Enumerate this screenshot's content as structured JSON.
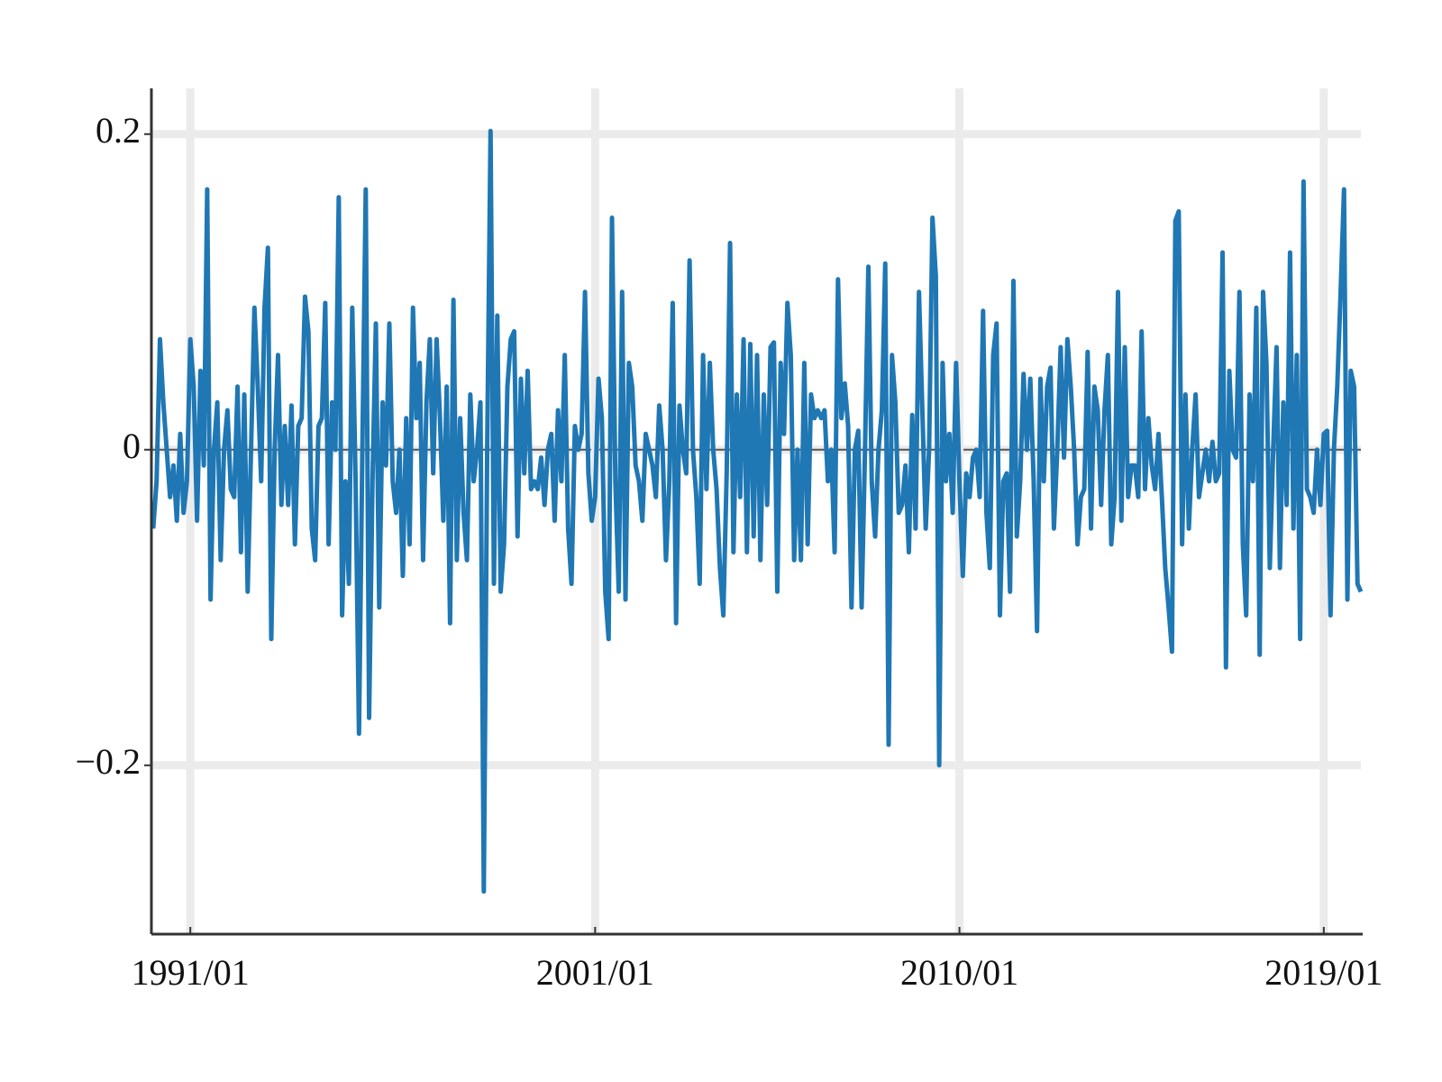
{
  "chart_data": {
    "type": "line",
    "x": [
      "1990/02",
      "1990/03",
      "1990/04",
      "1990/05",
      "1990/06",
      "1990/07",
      "1990/08",
      "1990/09",
      "1990/10",
      "1990/11",
      "1990/12",
      "1991/01",
      "1991/02",
      "1991/03",
      "1991/04",
      "1991/05",
      "1991/06",
      "1991/07",
      "1991/08",
      "1991/09",
      "1991/10",
      "1991/11",
      "1991/12",
      "1992/01",
      "1992/02",
      "1992/03",
      "1992/04",
      "1992/05",
      "1992/06",
      "1992/07",
      "1992/08",
      "1992/09",
      "1992/10",
      "1992/11",
      "1992/12",
      "1993/01",
      "1993/02",
      "1993/03",
      "1993/04",
      "1993/05",
      "1993/06",
      "1993/07",
      "1993/08",
      "1993/09",
      "1993/10",
      "1993/11",
      "1993/12",
      "1994/01",
      "1994/02",
      "1994/03",
      "1994/04",
      "1994/05",
      "1994/06",
      "1994/07",
      "1994/08",
      "1994/09",
      "1994/10",
      "1994/11",
      "1994/12",
      "1995/01",
      "1995/02",
      "1995/03",
      "1995/04",
      "1995/05",
      "1995/06",
      "1995/07",
      "1995/08",
      "1995/09",
      "1995/10",
      "1995/11",
      "1995/12",
      "1996/01",
      "1996/02",
      "1996/03",
      "1996/04",
      "1996/05",
      "1996/06",
      "1996/07",
      "1996/08",
      "1996/09",
      "1996/10",
      "1996/11",
      "1996/12",
      "1997/01",
      "1997/02",
      "1997/03",
      "1997/04",
      "1997/05",
      "1997/06",
      "1997/07",
      "1997/08",
      "1997/09",
      "1997/10",
      "1997/11",
      "1997/12",
      "1998/01",
      "1998/02",
      "1998/03",
      "1998/04",
      "1998/05",
      "1998/06",
      "1998/07",
      "1998/08",
      "1998/09",
      "1998/10",
      "1998/11",
      "1998/12",
      "1999/01",
      "1999/02",
      "1999/03",
      "1999/04",
      "1999/05",
      "1999/06",
      "1999/07",
      "1999/08",
      "1999/09",
      "1999/10",
      "1999/11",
      "1999/12",
      "2000/01",
      "2000/02",
      "2000/03",
      "2000/04",
      "2000/05",
      "2000/06",
      "2000/07",
      "2000/08",
      "2000/09",
      "2000/10",
      "2000/11",
      "2000/12",
      "2001/01",
      "2001/02",
      "2001/03",
      "2001/04",
      "2001/05",
      "2001/06",
      "2001/07",
      "2001/08",
      "2001/09",
      "2001/10",
      "2001/11",
      "2001/12",
      "2002/01",
      "2002/02",
      "2002/03",
      "2002/04",
      "2002/05",
      "2002/06",
      "2002/07",
      "2002/08",
      "2002/09",
      "2002/10",
      "2002/11",
      "2002/12",
      "2003/01",
      "2003/02",
      "2003/03",
      "2003/04",
      "2003/05",
      "2003/06",
      "2003/07",
      "2003/08",
      "2003/09",
      "2003/10",
      "2003/11",
      "2003/12",
      "2004/01",
      "2004/02",
      "2004/03",
      "2004/04",
      "2004/05",
      "2004/06",
      "2004/07",
      "2004/08",
      "2004/09",
      "2004/10",
      "2004/11",
      "2004/12",
      "2005/01",
      "2005/02",
      "2005/03",
      "2005/04",
      "2005/05",
      "2005/06",
      "2005/07",
      "2005/08",
      "2005/09",
      "2005/10",
      "2005/11",
      "2005/12",
      "2006/01",
      "2006/02",
      "2006/03",
      "2006/04",
      "2006/05",
      "2006/06",
      "2006/07",
      "2006/08",
      "2006/09",
      "2006/10",
      "2006/11",
      "2006/12",
      "2007/01",
      "2007/02",
      "2007/03",
      "2007/04",
      "2007/05",
      "2007/06",
      "2007/07",
      "2007/08",
      "2007/09",
      "2007/10",
      "2007/11",
      "2007/12",
      "2008/01",
      "2008/02",
      "2008/03",
      "2008/04",
      "2008/05",
      "2008/06",
      "2008/07",
      "2008/08",
      "2008/09",
      "2008/10",
      "2008/11",
      "2008/12",
      "2009/01",
      "2009/02",
      "2009/03",
      "2009/04",
      "2009/05",
      "2009/06",
      "2009/07",
      "2009/08",
      "2009/09",
      "2009/10",
      "2009/11",
      "2009/12",
      "2010/01",
      "2010/02",
      "2010/03",
      "2010/04",
      "2010/05",
      "2010/06",
      "2010/07",
      "2010/08",
      "2010/09",
      "2010/10",
      "2010/11",
      "2010/12",
      "2011/01",
      "2011/02",
      "2011/03",
      "2011/04",
      "2011/05",
      "2011/06",
      "2011/07",
      "2011/08",
      "2011/09",
      "2011/10",
      "2011/11",
      "2011/12",
      "2012/01",
      "2012/02",
      "2012/03",
      "2012/04",
      "2012/05",
      "2012/06",
      "2012/07",
      "2012/08",
      "2012/09",
      "2012/10",
      "2012/11",
      "2012/12",
      "2013/01",
      "2013/02",
      "2013/03",
      "2013/04",
      "2013/05",
      "2013/06",
      "2013/07",
      "2013/08",
      "2013/09",
      "2013/10",
      "2013/11",
      "2013/12",
      "2014/01",
      "2014/02",
      "2014/03",
      "2014/04",
      "2014/05",
      "2014/06",
      "2014/07",
      "2014/08",
      "2014/09",
      "2014/10",
      "2014/11",
      "2014/12",
      "2015/01",
      "2015/02",
      "2015/03",
      "2015/04",
      "2015/05",
      "2015/06",
      "2015/07",
      "2015/08",
      "2015/09",
      "2015/10",
      "2015/11",
      "2015/12",
      "2016/01",
      "2016/02",
      "2016/03",
      "2016/04",
      "2016/05",
      "2016/06",
      "2016/07",
      "2016/08",
      "2016/09",
      "2016/10",
      "2016/11",
      "2016/12",
      "2017/01",
      "2017/02",
      "2017/03",
      "2017/04",
      "2017/05",
      "2017/06",
      "2017/07",
      "2017/08",
      "2017/09",
      "2017/10",
      "2017/11",
      "2017/12",
      "2018/01",
      "2018/02",
      "2018/03",
      "2018/04",
      "2018/05",
      "2018/06",
      "2018/07",
      "2018/08",
      "2018/09",
      "2018/10",
      "2018/11",
      "2018/12",
      "2019/01",
      "2019/02",
      "2019/03",
      "2019/04",
      "2019/05",
      "2019/06",
      "2019/07",
      "2019/08",
      "2019/09",
      "2019/10",
      "2019/11",
      "2019/12"
    ],
    "series": [
      {
        "color": "#1f77b4",
        "values": [
          -0.05,
          -0.02,
          0.07,
          0.03,
          0.0,
          -0.03,
          -0.01,
          -0.045,
          0.01,
          -0.04,
          -0.02,
          0.07,
          0.04,
          -0.045,
          0.05,
          -0.01,
          0.165,
          -0.095,
          0.0,
          0.03,
          -0.07,
          0.0,
          0.025,
          -0.025,
          -0.03,
          0.04,
          -0.065,
          0.035,
          -0.09,
          0.0,
          0.09,
          0.04,
          -0.02,
          0.09,
          0.128,
          -0.12,
          0.0,
          0.06,
          -0.035,
          0.015,
          -0.035,
          0.028,
          -0.06,
          0.015,
          0.02,
          0.097,
          0.075,
          -0.05,
          -0.07,
          0.015,
          0.02,
          0.093,
          -0.06,
          0.03,
          0.0,
          0.16,
          -0.105,
          -0.02,
          -0.085,
          0.09,
          -0.02,
          -0.18,
          0.0,
          0.165,
          -0.17,
          -0.02,
          0.08,
          -0.1,
          0.03,
          -0.01,
          0.08,
          -0.02,
          -0.04,
          0.0,
          -0.08,
          0.02,
          -0.06,
          0.09,
          0.02,
          0.055,
          -0.07,
          0.03,
          0.07,
          -0.015,
          0.07,
          0.02,
          -0.045,
          0.04,
          -0.11,
          0.095,
          -0.07,
          0.02,
          -0.04,
          -0.07,
          0.035,
          -0.02,
          0.0,
          0.03,
          -0.28,
          0.0,
          0.202,
          -0.085,
          0.085,
          -0.09,
          -0.06,
          0.04,
          0.07,
          0.075,
          -0.055,
          0.045,
          -0.015,
          0.05,
          -0.025,
          -0.02,
          -0.025,
          -0.005,
          -0.035,
          0.0,
          0.01,
          -0.045,
          0.025,
          -0.02,
          0.06,
          -0.05,
          -0.085,
          0.015,
          0.0,
          0.01,
          0.1,
          -0.015,
          -0.045,
          -0.03,
          0.045,
          0.02,
          -0.09,
          -0.12,
          0.147,
          -0.02,
          -0.09,
          0.1,
          -0.095,
          0.055,
          0.04,
          -0.01,
          -0.02,
          -0.045,
          0.01,
          0.0,
          -0.01,
          -0.03,
          0.028,
          0.0,
          -0.07,
          -0.02,
          0.093,
          -0.11,
          0.028,
          0.0,
          -0.015,
          0.12,
          0.0,
          -0.03,
          -0.085,
          0.06,
          -0.025,
          0.055,
          0.0,
          -0.025,
          -0.075,
          -0.105,
          -0.015,
          0.131,
          -0.065,
          0.035,
          -0.03,
          0.07,
          -0.065,
          0.067,
          -0.055,
          0.06,
          -0.07,
          0.035,
          -0.035,
          0.065,
          0.068,
          -0.09,
          0.055,
          0.01,
          0.093,
          0.06,
          -0.07,
          0.0,
          -0.07,
          0.055,
          -0.06,
          0.035,
          0.02,
          0.025,
          0.02,
          0.025,
          -0.02,
          0.0,
          -0.065,
          0.108,
          0.02,
          0.042,
          0.015,
          -0.1,
          0.0,
          0.012,
          -0.1,
          0.0,
          0.116,
          -0.02,
          -0.055,
          0.0,
          0.025,
          0.118,
          -0.187,
          0.06,
          0.03,
          -0.04,
          -0.035,
          -0.01,
          -0.065,
          0.022,
          -0.05,
          0.1,
          0.025,
          -0.05,
          0.0,
          0.147,
          0.11,
          -0.2,
          0.055,
          -0.02,
          0.01,
          -0.04,
          0.055,
          -0.02,
          -0.08,
          -0.015,
          -0.03,
          -0.005,
          0.0,
          -0.03,
          0.088,
          -0.04,
          -0.075,
          0.06,
          0.08,
          -0.105,
          -0.02,
          -0.015,
          -0.09,
          0.107,
          -0.055,
          -0.02,
          0.048,
          0.0,
          0.045,
          -0.02,
          -0.115,
          0.045,
          -0.02,
          0.04,
          0.052,
          -0.05,
          0.0,
          0.065,
          -0.005,
          0.07,
          0.04,
          0.0,
          -0.06,
          -0.03,
          -0.025,
          0.062,
          -0.05,
          0.04,
          0.025,
          -0.035,
          0.025,
          0.06,
          -0.06,
          -0.03,
          0.1,
          -0.045,
          0.065,
          -0.03,
          -0.01,
          -0.01,
          -0.03,
          0.075,
          -0.025,
          0.02,
          -0.01,
          -0.025,
          0.01,
          -0.03,
          -0.075,
          -0.1,
          -0.128,
          0.145,
          0.151,
          -0.06,
          0.035,
          -0.05,
          0.0,
          0.035,
          -0.03,
          -0.015,
          0.0,
          -0.02,
          0.005,
          -0.02,
          -0.015,
          0.125,
          -0.138,
          0.05,
          0.0,
          -0.005,
          0.1,
          -0.06,
          -0.105,
          0.035,
          -0.02,
          0.09,
          -0.13,
          0.1,
          0.055,
          -0.075,
          0.0,
          0.065,
          -0.075,
          0.03,
          -0.035,
          0.125,
          -0.05,
          0.06,
          -0.12,
          0.17,
          -0.025,
          -0.03,
          -0.04,
          0.0,
          -0.035,
          0.01,
          0.012,
          -0.105,
          0.0,
          0.04,
          0.1,
          0.165,
          -0.095,
          0.05,
          0.04,
          -0.085,
          -0.09
        ]
      }
    ],
    "xlim": [
      "1990/02",
      "2019/12"
    ],
    "xticks": [
      "1991/01",
      "2001/01",
      "2010/01",
      "2019/01"
    ],
    "ylim": [
      -0.307,
      0.229
    ],
    "yticks": [
      {
        "value": -0.2,
        "label": "−0.2"
      },
      0,
      0.2
    ],
    "grid": true
  }
}
